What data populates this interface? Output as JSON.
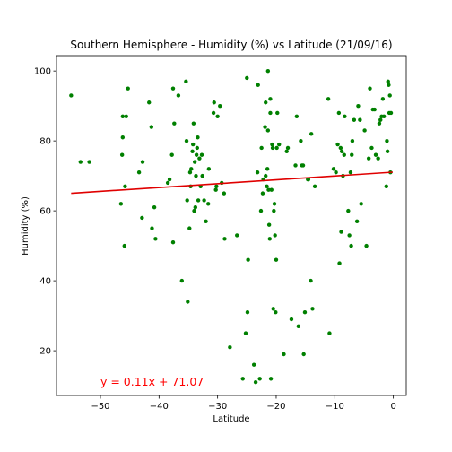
{
  "chart_data": {
    "type": "scatter",
    "title": "Southern Hemisphere - Humidity (%) vs Latitude (21/09/16)",
    "xlabel": "Latitude",
    "ylabel": "Humidity (%)",
    "xlim": [
      -57.5,
      2.2
    ],
    "ylim": [
      7.2,
      104.4
    ],
    "xticks": [
      -50,
      -40,
      -30,
      -20,
      -10,
      0
    ],
    "yticks": [
      20,
      40,
      60,
      80,
      100
    ],
    "grid": false,
    "point_color": "#008000",
    "regression": {
      "slope": 0.11,
      "intercept": 71.07,
      "x_range": [
        -55.0,
        -0.1
      ],
      "color": "#e00000",
      "label": "y = 0.11x + 71.07",
      "label_color": "#ff0000"
    },
    "points": [
      [
        -55.0,
        93
      ],
      [
        -53.4,
        74
      ],
      [
        -51.9,
        74
      ],
      [
        -46.5,
        62
      ],
      [
        -46.3,
        76
      ],
      [
        -46.2,
        87
      ],
      [
        -46.2,
        81
      ],
      [
        -45.9,
        50
      ],
      [
        -45.8,
        67
      ],
      [
        -45.6,
        87
      ],
      [
        -45.3,
        95
      ],
      [
        -43.4,
        71
      ],
      [
        -42.9,
        58
      ],
      [
        -42.8,
        74
      ],
      [
        -41.7,
        91
      ],
      [
        -41.3,
        84
      ],
      [
        -41.2,
        55
      ],
      [
        -40.8,
        61
      ],
      [
        -40.6,
        52
      ],
      [
        -38.5,
        68
      ],
      [
        -38.2,
        69
      ],
      [
        -37.8,
        76
      ],
      [
        -37.6,
        95
      ],
      [
        -37.6,
        51
      ],
      [
        -37.4,
        85
      ],
      [
        -36.7,
        93
      ],
      [
        -36.1,
        40
      ],
      [
        -35.4,
        97
      ],
      [
        -35.3,
        80
      ],
      [
        -35.2,
        63
      ],
      [
        -35.1,
        34
      ],
      [
        -34.8,
        55
      ],
      [
        -34.7,
        71
      ],
      [
        -34.6,
        67
      ],
      [
        -34.5,
        72
      ],
      [
        -34.3,
        77
      ],
      [
        -34.2,
        79
      ],
      [
        -34.1,
        85
      ],
      [
        -34.0,
        60
      ],
      [
        -33.9,
        74
      ],
      [
        -33.8,
        61
      ],
      [
        -33.7,
        70
      ],
      [
        -33.6,
        76
      ],
      [
        -33.5,
        78
      ],
      [
        -33.4,
        81
      ],
      [
        -33.3,
        63
      ],
      [
        -33.1,
        75
      ],
      [
        -32.9,
        67
      ],
      [
        -32.7,
        76
      ],
      [
        -32.6,
        70
      ],
      [
        -32.3,
        63
      ],
      [
        -32.0,
        57
      ],
      [
        -31.6,
        62
      ],
      [
        -31.5,
        72
      ],
      [
        -30.7,
        88
      ],
      [
        -30.6,
        91
      ],
      [
        -30.3,
        66
      ],
      [
        -30.2,
        67
      ],
      [
        -30.0,
        87
      ],
      [
        -29.6,
        90
      ],
      [
        -29.3,
        68
      ],
      [
        -28.9,
        65
      ],
      [
        -28.8,
        52
      ],
      [
        -27.9,
        21
      ],
      [
        -26.7,
        53
      ],
      [
        -25.7,
        12
      ],
      [
        -25.2,
        25
      ],
      [
        -25.0,
        98
      ],
      [
        -24.9,
        31
      ],
      [
        -24.8,
        46
      ],
      [
        -23.8,
        16
      ],
      [
        -23.5,
        11
      ],
      [
        -23.2,
        71
      ],
      [
        -23.1,
        96
      ],
      [
        -22.8,
        12
      ],
      [
        -22.6,
        60
      ],
      [
        -22.5,
        78
      ],
      [
        -22.3,
        65
      ],
      [
        -22.2,
        69
      ],
      [
        -21.9,
        84
      ],
      [
        -21.8,
        91
      ],
      [
        -21.8,
        70
      ],
      [
        -21.6,
        67
      ],
      [
        -21.5,
        72
      ],
      [
        -21.4,
        100
      ],
      [
        -21.4,
        83
      ],
      [
        -21.3,
        66
      ],
      [
        -21.2,
        56
      ],
      [
        -21.1,
        52
      ],
      [
        -21.0,
        88
      ],
      [
        -21.0,
        92
      ],
      [
        -20.9,
        12
      ],
      [
        -20.8,
        66
      ],
      [
        -20.7,
        79
      ],
      [
        -20.6,
        78
      ],
      [
        -20.5,
        32
      ],
      [
        -20.4,
        60
      ],
      [
        -20.3,
        62
      ],
      [
        -20.2,
        53
      ],
      [
        -20.1,
        31
      ],
      [
        -20.0,
        46
      ],
      [
        -19.9,
        78
      ],
      [
        -19.8,
        88
      ],
      [
        -19.5,
        79
      ],
      [
        -18.7,
        19
      ],
      [
        -18.2,
        77
      ],
      [
        -18.0,
        78
      ],
      [
        -17.4,
        29
      ],
      [
        -16.7,
        73
      ],
      [
        -16.5,
        87
      ],
      [
        -16.2,
        27
      ],
      [
        -15.8,
        80
      ],
      [
        -15.6,
        73
      ],
      [
        -15.4,
        73
      ],
      [
        -15.3,
        19
      ],
      [
        -15.1,
        31
      ],
      [
        -14.6,
        69
      ],
      [
        -14.5,
        69
      ],
      [
        -14.1,
        40
      ],
      [
        -14.0,
        82
      ],
      [
        -13.8,
        32
      ],
      [
        -13.4,
        67
      ],
      [
        -11.1,
        92
      ],
      [
        -10.9,
        25
      ],
      [
        -10.2,
        72
      ],
      [
        -9.8,
        71
      ],
      [
        -9.5,
        79
      ],
      [
        -9.3,
        88
      ],
      [
        -9.2,
        45
      ],
      [
        -9.0,
        78
      ],
      [
        -8.9,
        54
      ],
      [
        -8.8,
        77
      ],
      [
        -8.6,
        70
      ],
      [
        -8.4,
        76
      ],
      [
        -8.3,
        87
      ],
      [
        -7.7,
        60
      ],
      [
        -7.5,
        53
      ],
      [
        -7.3,
        71
      ],
      [
        -7.2,
        50
      ],
      [
        -7.1,
        76
      ],
      [
        -7.0,
        80
      ],
      [
        -6.7,
        86
      ],
      [
        -6.2,
        57
      ],
      [
        -6.0,
        90
      ],
      [
        -5.7,
        86
      ],
      [
        -5.5,
        62
      ],
      [
        -4.9,
        83
      ],
      [
        -4.6,
        50
      ],
      [
        -4.2,
        75
      ],
      [
        -4.0,
        95
      ],
      [
        -3.7,
        78
      ],
      [
        -3.5,
        89
      ],
      [
        -3.2,
        89
      ],
      [
        -3.0,
        76
      ],
      [
        -2.6,
        75
      ],
      [
        -2.4,
        85
      ],
      [
        -2.2,
        86
      ],
      [
        -2.0,
        87
      ],
      [
        -1.8,
        92
      ],
      [
        -1.6,
        87
      ],
      [
        -1.2,
        67
      ],
      [
        -1.1,
        80
      ],
      [
        -1.0,
        77
      ],
      [
        -0.9,
        97
      ],
      [
        -0.8,
        96
      ],
      [
        -0.7,
        88
      ],
      [
        -0.6,
        93
      ],
      [
        -0.5,
        71
      ],
      [
        -0.4,
        88
      ]
    ]
  }
}
